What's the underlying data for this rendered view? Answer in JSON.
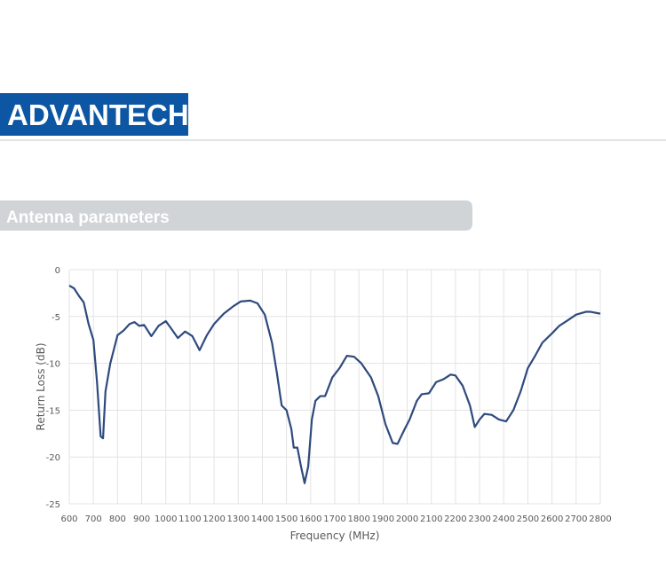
{
  "header": {
    "logo": "ADVANTECH"
  },
  "section": {
    "title": "Antenna parameters"
  },
  "chart_data": {
    "type": "line",
    "xlabel": "Frequency (MHz)",
    "ylabel": "Return Loss (dB)",
    "xlim": [
      600,
      2800
    ],
    "ylim": [
      -25,
      0
    ],
    "xticks": [
      600,
      700,
      800,
      900,
      1000,
      1100,
      1200,
      1300,
      1400,
      1500,
      1600,
      1700,
      1800,
      1900,
      2000,
      2100,
      2200,
      2300,
      2400,
      2500,
      2600,
      2700,
      2800
    ],
    "yticks": [
      0,
      -5,
      -10,
      -15,
      -20,
      -25
    ],
    "grid": true,
    "series": [
      {
        "color": "#2e4a7d",
        "x": [
          600,
          620,
          640,
          660,
          680,
          700,
          715,
          730,
          740,
          750,
          770,
          800,
          825,
          850,
          870,
          890,
          910,
          940,
          970,
          1000,
          1020,
          1050,
          1080,
          1110,
          1140,
          1170,
          1200,
          1240,
          1280,
          1310,
          1350,
          1380,
          1410,
          1440,
          1460,
          1480,
          1500,
          1520,
          1530,
          1545,
          1560,
          1575,
          1590,
          1605,
          1620,
          1640,
          1660,
          1690,
          1720,
          1750,
          1780,
          1810,
          1850,
          1880,
          1910,
          1940,
          1960,
          1990,
          2010,
          2040,
          2060,
          2090,
          2120,
          2150,
          2180,
          2200,
          2230,
          2260,
          2280,
          2300,
          2320,
          2350,
          2380,
          2410,
          2440,
          2470,
          2500,
          2530,
          2560,
          2600,
          2630,
          2660,
          2700,
          2740,
          2760,
          2800
        ],
        "values": [
          -1.7,
          -2.0,
          -2.8,
          -3.5,
          -5.8,
          -7.5,
          -12,
          -17.8,
          -18,
          -13,
          -10,
          -7,
          -6.5,
          -5.8,
          -5.6,
          -6.0,
          -5.9,
          -7.1,
          -6.0,
          -5.5,
          -6.2,
          -7.3,
          -6.6,
          -7.1,
          -8.6,
          -7.0,
          -5.8,
          -4.7,
          -3.9,
          -3.4,
          -3.3,
          -3.6,
          -4.8,
          -7.8,
          -11,
          -14.5,
          -15,
          -17,
          -19,
          -19,
          -21,
          -22.8,
          -21,
          -16,
          -14,
          -13.5,
          -13.5,
          -11.5,
          -10.5,
          -9.2,
          -9.3,
          -10,
          -11.5,
          -13.5,
          -16.5,
          -18.5,
          -18.6,
          -17,
          -16,
          -14,
          -13.3,
          -13.2,
          -12.0,
          -11.7,
          -11.2,
          -11.3,
          -12.4,
          -14.5,
          -16.8,
          -16.0,
          -15.4,
          -15.5,
          -16.0,
          -16.2,
          -15,
          -13,
          -10.5,
          -9.2,
          -7.8,
          -6.8,
          -6.0,
          -5.5,
          -4.8,
          -4.5,
          -4.5,
          -4.7
        ]
      }
    ]
  }
}
